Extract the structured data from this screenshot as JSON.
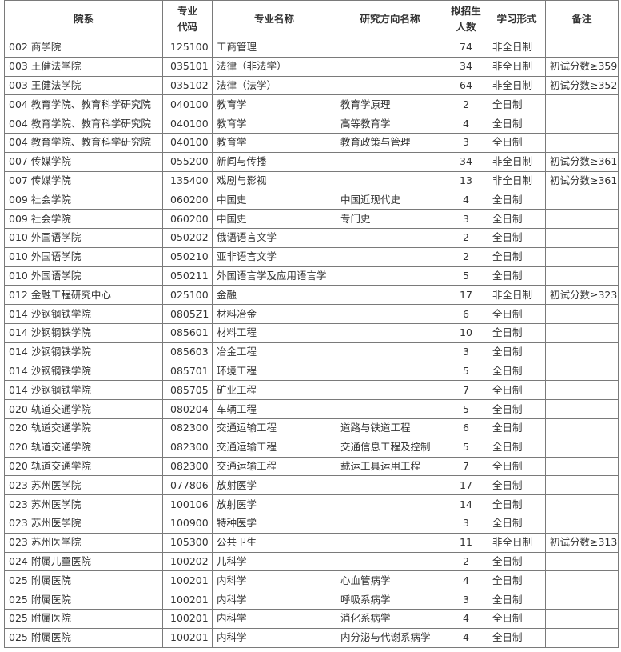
{
  "table": {
    "header": [
      "院系",
      [
        "专业",
        "代码"
      ],
      "专业名称",
      "研究方向名称",
      [
        "拟招生",
        "人数"
      ],
      "学习形式",
      "备注"
    ],
    "rows": [
      [
        "002 商学院",
        "125100",
        "工商管理",
        null,
        74,
        "非全日制",
        null
      ],
      [
        "003 王健法学院",
        "035101",
        "法律（非法学）",
        null,
        34,
        "非全日制",
        "初试分数≥359"
      ],
      [
        "003 王健法学院",
        "035102",
        "法律（法学）",
        null,
        64,
        "非全日制",
        "初试分数≥352"
      ],
      [
        "004 教育学院、教育科学研究院",
        "040100",
        "教育学",
        "教育学原理",
        2,
        "全日制",
        null
      ],
      [
        "004 教育学院、教育科学研究院",
        "040100",
        "教育学",
        "高等教育学",
        4,
        "全日制",
        null
      ],
      [
        "004 教育学院、教育科学研究院",
        "040100",
        "教育学",
        "教育政策与管理",
        3,
        "全日制",
        null
      ],
      [
        "007 传媒学院",
        "055200",
        "新闻与传播",
        null,
        34,
        "非全日制",
        "初试分数≥361"
      ],
      [
        "007 传媒学院",
        "135400",
        "戏剧与影视",
        null,
        13,
        "非全日制",
        "初试分数≥361"
      ],
      [
        "009 社会学院",
        "060200",
        "中国史",
        "中国近现代史",
        4,
        "全日制",
        null
      ],
      [
        "009 社会学院",
        "060200",
        "中国史",
        "专门史",
        3,
        "全日制",
        null
      ],
      [
        "010 外国语学院",
        "050202",
        "俄语语言文学",
        null,
        2,
        "全日制",
        null
      ],
      [
        "010 外国语学院",
        "050210",
        "亚非语言文学",
        null,
        2,
        "全日制",
        null
      ],
      [
        "010 外国语学院",
        "050211",
        "外国语言学及应用语言学",
        null,
        5,
        "全日制",
        null
      ],
      [
        "012 金融工程研究中心",
        "025100",
        "金融",
        null,
        17,
        "非全日制",
        "初试分数≥323"
      ],
      [
        "014 沙钢钢铁学院",
        "0805Z1",
        "材料冶金",
        null,
        6,
        "全日制",
        null
      ],
      [
        "014 沙钢钢铁学院",
        "085601",
        "材料工程",
        null,
        10,
        "全日制",
        null
      ],
      [
        "014 沙钢钢铁学院",
        "085603",
        "冶金工程",
        null,
        3,
        "全日制",
        null
      ],
      [
        "014 沙钢钢铁学院",
        "085701",
        "环境工程",
        null,
        5,
        "全日制",
        null
      ],
      [
        "014 沙钢钢铁学院",
        "085705",
        "矿业工程",
        null,
        7,
        "全日制",
        null
      ],
      [
        "020 轨道交通学院",
        "080204",
        "车辆工程",
        null,
        5,
        "全日制",
        null
      ],
      [
        "020 轨道交通学院",
        "082300",
        "交通运输工程",
        "道路与铁道工程",
        6,
        "全日制",
        null
      ],
      [
        "020 轨道交通学院",
        "082300",
        "交通运输工程",
        "交通信息工程及控制",
        5,
        "全日制",
        null
      ],
      [
        "020 轨道交通学院",
        "082300",
        "交通运输工程",
        "载运工具运用工程",
        7,
        "全日制",
        null
      ],
      [
        "023 苏州医学院",
        "077806",
        "放射医学",
        null,
        17,
        "全日制",
        null
      ],
      [
        "023 苏州医学院",
        "100106",
        "放射医学",
        null,
        14,
        "全日制",
        null
      ],
      [
        "023 苏州医学院",
        "100900",
        "特种医学",
        null,
        3,
        "全日制",
        null
      ],
      [
        "023 苏州医学院",
        "105300",
        "公共卫生",
        null,
        11,
        "非全日制",
        "初试分数≥313"
      ],
      [
        "024 附属儿童医院",
        "100202",
        "儿科学",
        null,
        2,
        "全日制",
        null
      ],
      [
        "025 附属医院",
        "100201",
        "内科学",
        "心血管病学",
        4,
        "全日制",
        null
      ],
      [
        "025 附属医院",
        "100201",
        "内科学",
        "呼吸系病学",
        3,
        "全日制",
        null
      ],
      [
        "025 附属医院",
        "100201",
        "内科学",
        "消化系病学",
        4,
        "全日制",
        null
      ],
      [
        "025 附属医院",
        "100201",
        "内科学",
        "内分泌与代谢系病学",
        4,
        "全日制",
        null
      ]
    ]
  }
}
